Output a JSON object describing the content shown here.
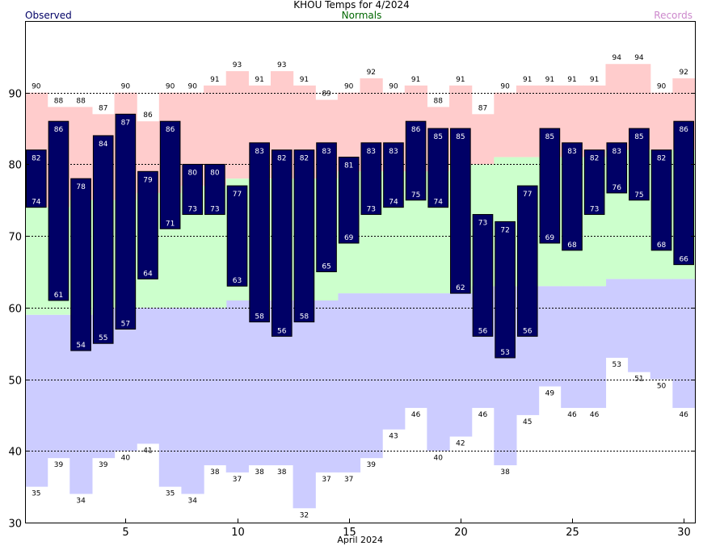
{
  "chart_data": {
    "type": "bar",
    "title": "KHOU Temps for 4/2024",
    "legend": {
      "observed": "Observed",
      "normals": "Normals",
      "records": "Records"
    },
    "xlabel": "April 2024",
    "ylabel": "",
    "ylim": [
      30,
      100
    ],
    "xlim": [
      1,
      30
    ],
    "grid": true,
    "y_ticks": [
      30,
      40,
      50,
      60,
      70,
      80,
      90
    ],
    "x_ticks": [
      5,
      10,
      15,
      20,
      25,
      30
    ],
    "days": [
      1,
      2,
      3,
      4,
      5,
      6,
      7,
      8,
      9,
      10,
      11,
      12,
      13,
      14,
      15,
      16,
      17,
      18,
      19,
      20,
      21,
      22,
      23,
      24,
      25,
      26,
      27,
      28,
      29,
      30
    ],
    "series": [
      {
        "name": "Observed",
        "key": "observed_high",
        "values": [
          82,
          86,
          78,
          84,
          87,
          79,
          86,
          80,
          80,
          77,
          83,
          82,
          82,
          83,
          81,
          83,
          83,
          86,
          85,
          85,
          73,
          72,
          77,
          85,
          83,
          82,
          83,
          85,
          82,
          86
        ]
      },
      {
        "name": "Observed",
        "key": "observed_low",
        "values": [
          74,
          61,
          54,
          55,
          57,
          64,
          71,
          73,
          73,
          63,
          58,
          56,
          58,
          65,
          69,
          73,
          74,
          75,
          74,
          62,
          56,
          53,
          56,
          69,
          68,
          73,
          76,
          75,
          68,
          66
        ]
      },
      {
        "name": "Normals",
        "key": "normal_high",
        "values": [
          74,
          74,
          75,
          75,
          75,
          76,
          76,
          77,
          77,
          78,
          78,
          78,
          78,
          78,
          79,
          79,
          79,
          79,
          79,
          80,
          80,
          81,
          81,
          81,
          81,
          81,
          82,
          82,
          82,
          82
        ]
      },
      {
        "name": "Normals",
        "key": "normal_low",
        "values": [
          59,
          59,
          59,
          60,
          60,
          60,
          60,
          60,
          60,
          61,
          61,
          61,
          61,
          61,
          62,
          62,
          62,
          62,
          62,
          62,
          63,
          63,
          63,
          63,
          63,
          63,
          64,
          64,
          64,
          64
        ]
      },
      {
        "name": "Records",
        "key": "record_high",
        "values": [
          90,
          88,
          88,
          87,
          90,
          86,
          90,
          90,
          91,
          93,
          91,
          93,
          91,
          89,
          90,
          92,
          90,
          91,
          88,
          91,
          87,
          90,
          91,
          91,
          91,
          91,
          94,
          94,
          90,
          92
        ]
      },
      {
        "name": "Records",
        "key": "record_low",
        "values": [
          35,
          39,
          34,
          39,
          40,
          41,
          35,
          34,
          38,
          37,
          38,
          38,
          32,
          37,
          37,
          39,
          43,
          46,
          40,
          42,
          46,
          38,
          45,
          49,
          46,
          46,
          53,
          51,
          50,
          46
        ]
      }
    ],
    "colors": {
      "observed": "#000066",
      "normals": "#ccffcc",
      "records_high": "#ffcccc",
      "records_low": "#ccccff",
      "observed_text": "#000066",
      "normals_text": "#006600",
      "records_text": "#cc88cc"
    }
  }
}
